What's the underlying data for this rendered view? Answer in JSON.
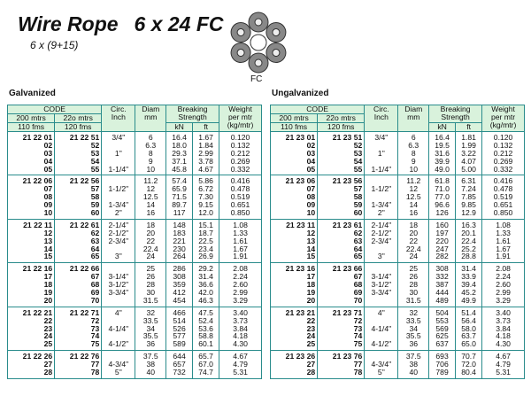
{
  "title": "Wire Rope",
  "title_spec": "6 x 24 FC",
  "subtitle": "6 x (9+15)",
  "diagram_label": "FC",
  "header": {
    "code": "CODE",
    "c200": [
      "200 mtrs",
      "110 fms"
    ],
    "c220": [
      "22o mtrs",
      "120 fms"
    ],
    "circ": [
      "Circ.",
      "Inch"
    ],
    "diam": [
      "Diam",
      "mm"
    ],
    "breaking": [
      "Breaking",
      "Strength"
    ],
    "kn": "kN",
    "ft": "ft",
    "weight": [
      "Weight",
      "per mtr",
      "(kg/mtr)"
    ]
  },
  "tables": [
    {
      "label": "Galvanized",
      "groups": [
        {
          "rows": [
            [
              "21 22 01",
              "21 22 51",
              "3/4\"",
              "6",
              "16.4",
              "1.67",
              "0.120"
            ],
            [
              "02",
              "52",
              null,
              "6.3",
              "18.0",
              "1.84",
              "0.132"
            ],
            [
              "03",
              "53",
              "1\"",
              "8",
              "29.3",
              "2.99",
              "0.212"
            ],
            [
              "04",
              "54",
              null,
              "9",
              "37.1",
              "3.78",
              "0.269"
            ],
            [
              "05",
              "55",
              "1-1/4\"",
              "10",
              "45.8",
              "4.67",
              "0.332"
            ]
          ]
        },
        {
          "rows": [
            [
              "21 22 06",
              "21 22 56",
              null,
              "11.2",
              "57.4",
              "5.86",
              "0.416"
            ],
            [
              "07",
              "57",
              "1-1/2\"",
              "12",
              "65.9",
              "6.72",
              "0.478"
            ],
            [
              "08",
              "58",
              null,
              "12.5",
              "71.5",
              "7.30",
              "0.519"
            ],
            [
              "09",
              "59",
              "1-3/4\"",
              "14",
              "89.7",
              "9.15",
              "0.651"
            ],
            [
              "10",
              "60",
              "2\"",
              "16",
              "117",
              "12.0",
              "0.850"
            ]
          ]
        },
        {
          "rows": [
            [
              "21 22 11",
              "21 22 61",
              "2-1/4\"",
              "18",
              "148",
              "15.1",
              "1.08"
            ],
            [
              "12",
              "62",
              "2-1/2\"",
              "20",
              "183",
              "18.7",
              "1.33"
            ],
            [
              "13",
              "63",
              "2-3/4\"",
              "22",
              "221",
              "22.5",
              "1.61"
            ],
            [
              "14",
              "64",
              null,
              "22.4",
              "230",
              "23.4",
              "1.67"
            ],
            [
              "15",
              "65",
              "3\"",
              "24",
              "264",
              "26.9",
              "1.91"
            ]
          ]
        },
        {
          "rows": [
            [
              "21 22 16",
              "21 22 66",
              null,
              "25",
              "286",
              "29.2",
              "2.08"
            ],
            [
              "17",
              "67",
              "3-1/4\"",
              "26",
              "308",
              "31.4",
              "2.24"
            ],
            [
              "18",
              "68",
              "3-1/2\"",
              "28",
              "359",
              "36.6",
              "2.60"
            ],
            [
              "19",
              "69",
              "3-3/4\"",
              "30",
              "412",
              "42.0",
              "2.99"
            ],
            [
              "20",
              "70",
              null,
              "31.5",
              "454",
              "46.3",
              "3.29"
            ]
          ]
        },
        {
          "rows": [
            [
              "21 22 21",
              "21 22 71",
              "4\"",
              "32",
              "466",
              "47.5",
              "3.40"
            ],
            [
              "22",
              "72",
              null,
              "33.5",
              "514",
              "52.4",
              "3.73"
            ],
            [
              "23",
              "73",
              "4-1/4\"",
              "34",
              "526",
              "53.6",
              "3.84"
            ],
            [
              "24",
              "74",
              null,
              "35.5",
              "577",
              "58.8",
              "4.18"
            ],
            [
              "25",
              "75",
              "4-1/2\"",
              "36",
              "589",
              "60.1",
              "4.30"
            ]
          ]
        },
        {
          "rows": [
            [
              "21 22 26",
              "21 22 76",
              null,
              "37.5",
              "644",
              "65.7",
              "4.67"
            ],
            [
              "27",
              "77",
              "4-3/4\"",
              "38",
              "657",
              "67.0",
              "4.79"
            ],
            [
              "28",
              "78",
              "5\"",
              "40",
              "732",
              "74.7",
              "5.31"
            ]
          ]
        }
      ]
    },
    {
      "label": "Ungalvanized",
      "groups": [
        {
          "rows": [
            [
              "21 23 01",
              "21 23 51",
              "3/4\"",
              "6",
              "16.4",
              "1.81",
              "0.120"
            ],
            [
              "02",
              "52",
              null,
              "6.3",
              "19.5",
              "1.99",
              "0.132"
            ],
            [
              "03",
              "53",
              "1\"",
              "8",
              "31.6",
              "3.22",
              "0.212"
            ],
            [
              "04",
              "54",
              null,
              "9",
              "39.9",
              "4.07",
              "0.269"
            ],
            [
              "05",
              "55",
              "1-1/4\"",
              "10",
              "49.0",
              "5.00",
              "0.332"
            ]
          ]
        },
        {
          "rows": [
            [
              "21 23 06",
              "21 23 56",
              null,
              "11.2",
              "61.8",
              "6.31",
              "0.416"
            ],
            [
              "07",
              "57",
              "1-1/2\"",
              "12",
              "71.0",
              "7.24",
              "0.478"
            ],
            [
              "08",
              "58",
              null,
              "12.5",
              "77.0",
              "7.85",
              "0.519"
            ],
            [
              "09",
              "59",
              "1-3/4\"",
              "14",
              "96.6",
              "9.85",
              "0.651"
            ],
            [
              "10",
              "60",
              "2\"",
              "16",
              "126",
              "12.9",
              "0.850"
            ]
          ]
        },
        {
          "rows": [
            [
              "21 23 11",
              "21 23 61",
              "2-1/4\"",
              "18",
              "160",
              "16.3",
              "1.08"
            ],
            [
              "12",
              "62",
              "2-1/2\"",
              "20",
              "197",
              "20.1",
              "1.33"
            ],
            [
              "13",
              "63",
              "2-3/4\"",
              "22",
              "220",
              "22.4",
              "1.61"
            ],
            [
              "14",
              "64",
              null,
              "22.4",
              "247",
              "25.2",
              "1.67"
            ],
            [
              "15",
              "65",
              "3\"",
              "24",
              "282",
              "28.8",
              "1.91"
            ]
          ]
        },
        {
          "rows": [
            [
              "21 23 16",
              "21 23 66",
              null,
              "25",
              "308",
              "31.4",
              "2.08"
            ],
            [
              "17",
              "67",
              "3-1/4\"",
              "26",
              "332",
              "33.9",
              "2.24"
            ],
            [
              "18",
              "68",
              "3-1/2\"",
              "28",
              "387",
              "39.4",
              "2.60"
            ],
            [
              "19",
              "69",
              "3-3/4\"",
              "30",
              "444",
              "45.2",
              "2.99"
            ],
            [
              "20",
              "70",
              null,
              "31.5",
              "489",
              "49.9",
              "3.29"
            ]
          ]
        },
        {
          "rows": [
            [
              "21 23 21",
              "21 23 71",
              "4\"",
              "32",
              "504",
              "51.4",
              "3.40"
            ],
            [
              "22",
              "72",
              null,
              "33.5",
              "553",
              "56.4",
              "3.73"
            ],
            [
              "23",
              "73",
              "4-1/4\"",
              "34",
              "569",
              "58.0",
              "3.84"
            ],
            [
              "24",
              "74",
              null,
              "35.5",
              "625",
              "63.7",
              "4.18"
            ],
            [
              "25",
              "75",
              "4-1/2\"",
              "36",
              "637",
              "65.0",
              "4.30"
            ]
          ]
        },
        {
          "rows": [
            [
              "21 23 26",
              "21 23 76",
              null,
              "37.5",
              "693",
              "70.7",
              "4.67"
            ],
            [
              "27",
              "77",
              "4-3/4\"",
              "38",
              "706",
              "72.0",
              "4.79"
            ],
            [
              "28",
              "78",
              "5\"",
              "40",
              "789",
              "80.4",
              "5.31"
            ]
          ]
        }
      ]
    }
  ]
}
